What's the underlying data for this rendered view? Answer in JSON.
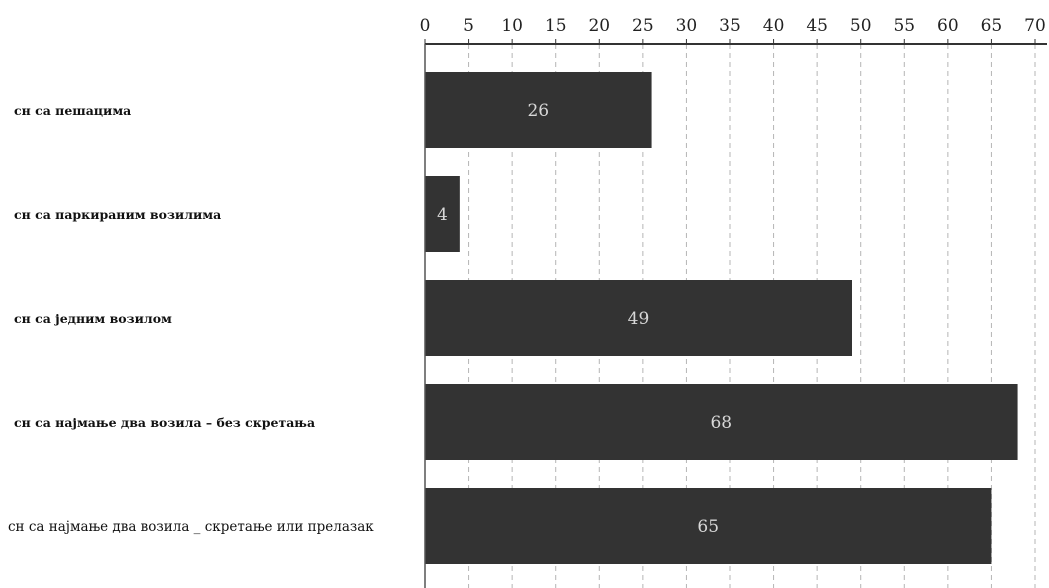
{
  "chart_data": {
    "type": "bar",
    "orientation": "horizontal",
    "title": "",
    "xlabel": "",
    "ylabel": "",
    "categories": [
      "сн са пешацима",
      "сн са паркираним возилима",
      "сн са једним возилом",
      "сн са најмање два возила – без скретања",
      "сн са најмање два возила _ скретање или прелазак"
    ],
    "values": [
      26,
      4,
      49,
      68,
      65
    ],
    "xlim": [
      0,
      70
    ],
    "xticks": [
      0,
      5,
      10,
      15,
      20,
      25,
      30,
      35,
      40,
      45,
      50,
      55,
      60,
      65,
      70
    ],
    "tick_labels": [
      "0",
      "5",
      "10",
      "15",
      "20",
      "25",
      "30",
      "35",
      "40",
      "45",
      "50",
      "55",
      "60",
      "65",
      "70"
    ],
    "data_labels": [
      "26",
      "4",
      "49",
      "68",
      "65"
    ],
    "x_axis_position": "top",
    "grid": true,
    "legend": "none",
    "bar_color": "#333333",
    "data_label_color": "#d8d8d8"
  }
}
